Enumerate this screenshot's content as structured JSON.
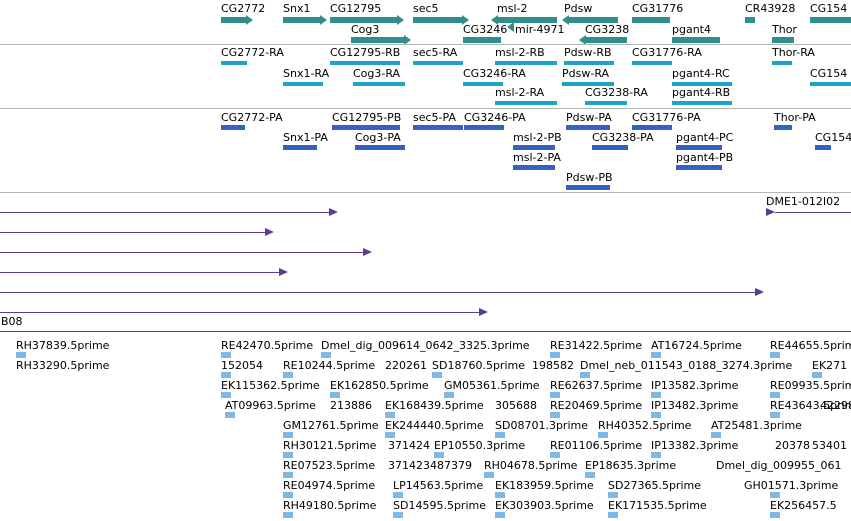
{
  "genes": {
    "CG2772": "CG2772",
    "Snx1": "Snx1",
    "CG12795": "CG12795",
    "sec5": "sec5",
    "msl2": "msl-2",
    "Pdsw": "Pdsw",
    "CG31776": "CG31776",
    "CR43928": "CR43928",
    "CG154": "CG154",
    "Cog3": "Cog3",
    "CG3246": "CG3246",
    "mir4971": "mir-4971",
    "CG3238": "CG3238",
    "pgant4": "pgant4",
    "Thor": "Thor"
  },
  "transcripts": {
    "r1": [
      "CG2772-RA",
      "CG12795-RB",
      "sec5-RA",
      "msl-2-RB",
      "Pdsw-RB",
      "CG31776-RA",
      "Thor-RA"
    ],
    "r2": [
      "Snx1-RA",
      "Cog3-RA",
      "CG3246-RA",
      "Pdsw-RA",
      "pgant4-RC",
      "CG154"
    ],
    "r3": [
      "msl-2-RA",
      "CG3238-RA",
      "pgant4-RB"
    ]
  },
  "proteins": {
    "r1": [
      "CG2772-PA",
      "CG12795-PB",
      "sec5-PA",
      "CG3246-PA",
      "Pdsw-PA",
      "CG31776-PA",
      "Thor-PA"
    ],
    "r2": [
      "Snx1-PA",
      "Cog3-PA",
      "msl-2-PB",
      "CG3238-PA",
      "pgant4-PC",
      "CG154"
    ],
    "r3": [
      "msl-2-PA",
      "pgant4-PB"
    ],
    "r4": [
      "Pdsw-PB"
    ]
  },
  "alignments": {
    "dme1": "DME1-012I02",
    "b08": "B08"
  },
  "ests": [
    [
      "RH37839.5prime",
      "RE42470.5prime",
      "Dmel_dig_009614_0642_3325.3prime",
      "RE31422.5prime",
      "AT16724.5prime",
      "RE44655.5prime"
    ],
    [
      "RH33290.5prime",
      "152054",
      "RE10244.5prime",
      "220261",
      "SD18760.5prime",
      "198582",
      "Dmel_neb_011543_0188_3274.3prime",
      "EK271"
    ],
    [
      "EK115362.5prime",
      "EK162850.5prime",
      "GM05361.5prime",
      "RE62637.5prime",
      "IP13582.3prime",
      "RE09935.5prime"
    ],
    [
      "AT09963.5prime",
      "213886",
      "EK168439.5prime",
      "305688",
      "RE20469.5prime",
      "IP13482.3prime",
      "RE43643.5prime",
      "42298"
    ],
    [
      "GM12761.5prime",
      "EK244440.5prime",
      "SD08701.3prime",
      "RH40352.5prime",
      "AT25481.3prime"
    ],
    [
      "RH30121.5prime",
      "371424",
      "EP10550.3prime",
      "RE01106.5prime",
      "IP13382.3prime",
      "20378",
      "53401"
    ],
    [
      "RE07523.5prime",
      "371423487379",
      "RH04678.5prime",
      "EP18635.3prime",
      "Dmel_dig_009955_061"
    ],
    [
      "RE04974.5prime",
      "LP14563.5prime",
      "EK183959.5prime",
      "SD27365.5prime",
      "GH01571.3prime"
    ],
    [
      "RH49180.5prime",
      "SD14595.5prime",
      "EK303903.5prime",
      "EK171535.5prime",
      "EK256457.5"
    ]
  ]
}
